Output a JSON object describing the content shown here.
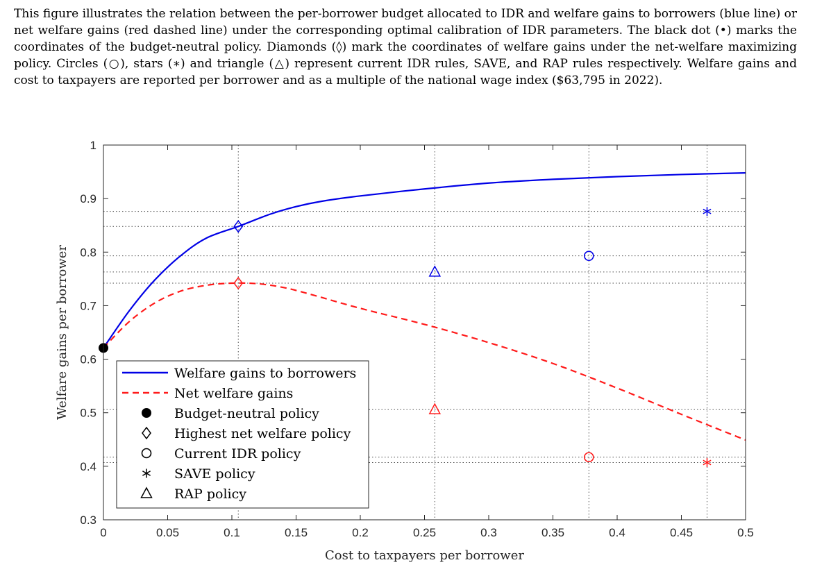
{
  "caption": "This figure illustrates the relation between the per-borrower budget allocated to IDR and welfare gains to borrowers (blue line) or net welfare gains (red dashed line) under the corresponding optimal calibration of IDR parameters. The black dot (•) marks the coordinates of the budget-neutral policy. Diamonds (◊) mark the coordinates of welfare gains under the net-welfare maximizing policy. Circles (○), stars (∗) and triangle (△) represent current IDR rules, SAVE, and RAP rules respectively. Welfare gains and cost to taxpayers are reported per borrower and as a multiple of the national wage index ($63,795 in 2022).",
  "colors": {
    "blue": "#0000e6",
    "red": "#ff1a1a",
    "black": "#000000",
    "grid": "#4d4d4d"
  },
  "chart_data": {
    "type": "line",
    "xlabel": "Cost to taxpayers per borrower",
    "ylabel": "Welfare gains per borrower",
    "xlim": [
      0,
      0.5
    ],
    "ylim": [
      0.3,
      1
    ],
    "x_ticks": [
      "0",
      "0.05",
      "0.1",
      "0.15",
      "0.2",
      "0.25",
      "0.3",
      "0.35",
      "0.4",
      "0.45",
      "0.5"
    ],
    "y_ticks": [
      "0.3",
      "0.4",
      "0.5",
      "0.6",
      "0.7",
      "0.8",
      "0.9",
      "1"
    ],
    "dotted_gridlines_x": [
      0.105,
      0.258,
      0.378,
      0.47
    ],
    "dotted_gridlines_y": [
      0.848,
      0.742,
      0.763,
      0.506,
      0.793,
      0.417,
      0.876,
      0.407
    ],
    "legend_position": "bottom-left",
    "series": [
      {
        "name": "Welfare gains to borrowers",
        "style": "solid",
        "color": "blue",
        "x": [
          0,
          0.02,
          0.04,
          0.06,
          0.08,
          0.105,
          0.13,
          0.15,
          0.17,
          0.2,
          0.25,
          0.3,
          0.35,
          0.4,
          0.45,
          0.5
        ],
        "y": [
          0.621,
          0.69,
          0.748,
          0.793,
          0.826,
          0.848,
          0.871,
          0.885,
          0.895,
          0.905,
          0.918,
          0.929,
          0.936,
          0.941,
          0.945,
          0.948
        ]
      },
      {
        "name": "Net welfare gains",
        "style": "dashed",
        "color": "red",
        "x": [
          0,
          0.02,
          0.04,
          0.06,
          0.08,
          0.1,
          0.12,
          0.14,
          0.16,
          0.2,
          0.25,
          0.3,
          0.35,
          0.4,
          0.45,
          0.5
        ],
        "y": [
          0.621,
          0.67,
          0.705,
          0.727,
          0.738,
          0.742,
          0.741,
          0.734,
          0.722,
          0.695,
          0.665,
          0.631,
          0.592,
          0.546,
          0.497,
          0.449
        ]
      }
    ],
    "markers": [
      {
        "name": "Budget-neutral policy",
        "symbol": "dot",
        "color": "black",
        "points": [
          [
            0,
            0.621
          ]
        ]
      },
      {
        "name": "Highest net welfare policy",
        "symbol": "diamond",
        "points": [
          [
            0.105,
            0.848,
            "blue"
          ],
          [
            0.105,
            0.742,
            "red"
          ]
        ]
      },
      {
        "name": "Current IDR policy",
        "symbol": "circle",
        "points": [
          [
            0.378,
            0.793,
            "blue"
          ],
          [
            0.378,
            0.417,
            "red"
          ]
        ]
      },
      {
        "name": "SAVE policy",
        "symbol": "star",
        "points": [
          [
            0.47,
            0.876,
            "blue"
          ],
          [
            0.47,
            0.407,
            "red"
          ]
        ]
      },
      {
        "name": "RAP policy",
        "symbol": "triangle",
        "points": [
          [
            0.258,
            0.763,
            "blue"
          ],
          [
            0.258,
            0.506,
            "red"
          ]
        ]
      }
    ]
  }
}
